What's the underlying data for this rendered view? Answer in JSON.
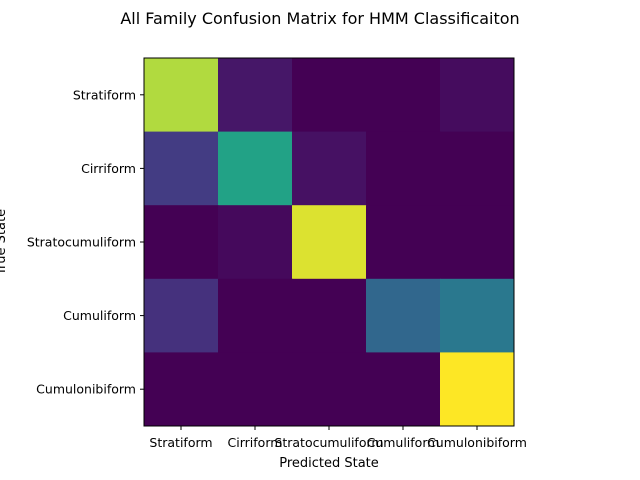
{
  "chart_data": {
    "type": "heatmap",
    "title": "All Family Confusion Matrix for HMM Classificaiton",
    "xlabel": "Predicted State",
    "ylabel": "True State",
    "x_categories": [
      "Stratiform",
      "Cirriform",
      "Stratocumuliform",
      "Cumuliform",
      "Cumulonibiform"
    ],
    "y_categories": [
      "Stratiform",
      "Cirriform",
      "Stratocumuliform",
      "Cumuliform",
      "Cumulonibiform"
    ],
    "colormap": "viridis",
    "value_range": [
      0,
      1
    ],
    "values": [
      [
        0.93,
        0.08,
        0.0,
        0.0,
        0.04
      ],
      [
        0.22,
        0.72,
        0.06,
        0.0,
        0.0
      ],
      [
        0.0,
        0.03,
        0.97,
        0.0,
        0.0
      ],
      [
        0.18,
        0.0,
        0.0,
        0.42,
        0.5
      ],
      [
        0.0,
        0.0,
        0.0,
        0.0,
        1.0
      ]
    ]
  }
}
